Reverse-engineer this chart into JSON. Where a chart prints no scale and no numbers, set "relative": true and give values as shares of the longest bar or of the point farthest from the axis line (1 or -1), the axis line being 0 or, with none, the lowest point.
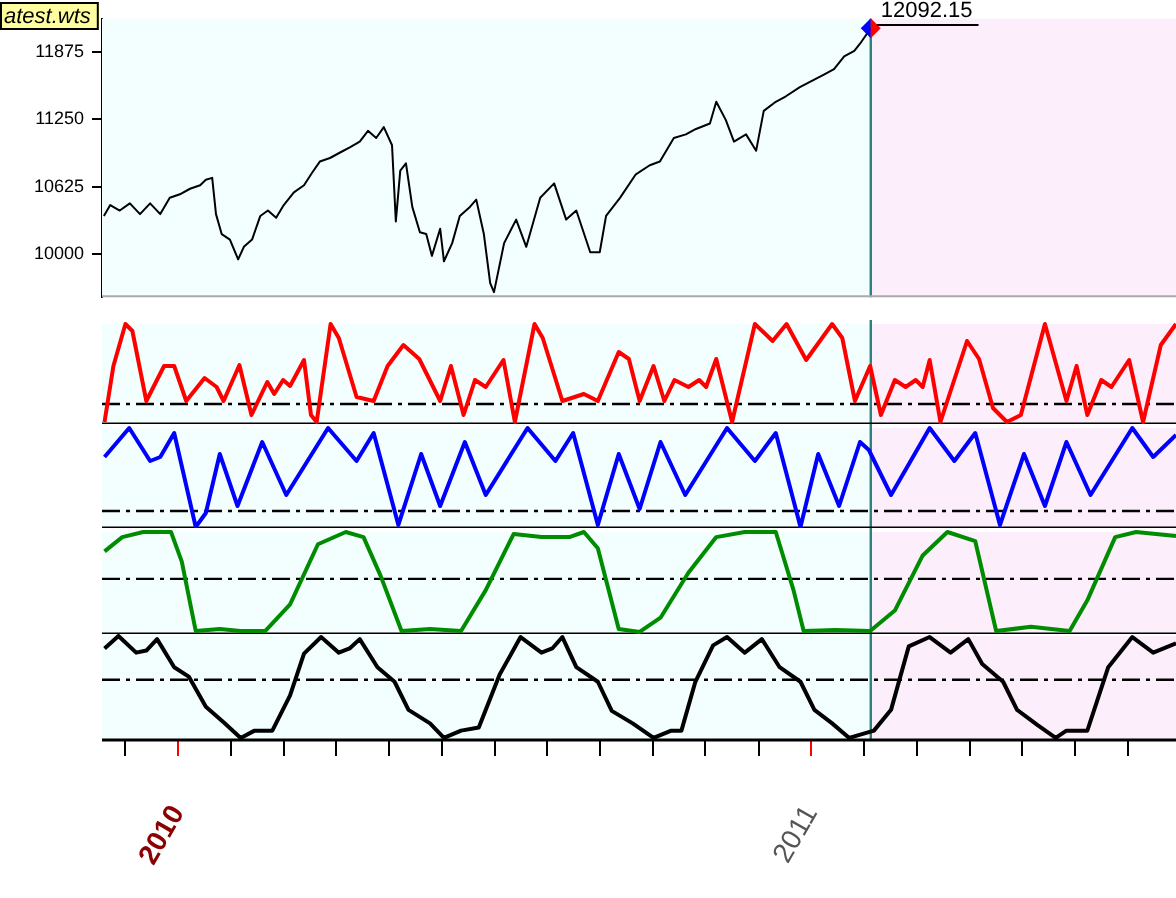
{
  "chart_data": [
    {
      "type": "line",
      "color": "#000000",
      "annotations": [
        "atest.wts",
        {
          "text": "12092.15",
          "x": 2011.094,
          "y": 12092.15
        }
      ],
      "xlim": [
        2009.88,
        2011.576
      ],
      "ylim": [
        9600,
        12180
      ],
      "yticks": [
        10000,
        10625,
        11250,
        11875
      ],
      "tick_labels": "y",
      "ref_lines": [
        {
          "axis": "x",
          "value": 2011.094,
          "color": "#2a7f7f"
        }
      ],
      "bands": [
        {
          "axis": "x",
          "from": 2011.094,
          "to": 2011.576,
          "color": "#fdeefb"
        }
      ],
      "x": [
        2009.883,
        2009.893,
        2009.908,
        2009.924,
        2009.94,
        2009.956,
        2009.972,
        2009.987,
        2010.003,
        2010.019,
        2010.035,
        2010.044,
        2010.054,
        2010.06,
        2010.069,
        2010.082,
        2010.095,
        2010.104,
        2010.117,
        2010.13,
        2010.142,
        2010.155,
        2010.167,
        2010.183,
        2010.199,
        2010.212,
        2010.224,
        2010.24,
        2010.256,
        2010.272,
        2010.287,
        2010.3,
        2010.313,
        2010.325,
        2010.338,
        2010.344,
        2010.351,
        2010.36,
        2010.37,
        2010.382,
        2010.392,
        2010.401,
        2010.414,
        2010.42,
        2010.433,
        2010.445,
        2010.461,
        2010.471,
        2010.483,
        2010.493,
        2010.499,
        2010.515,
        2010.534,
        2010.55,
        2010.572,
        2010.594,
        2010.613,
        2010.629,
        2010.651,
        2010.666,
        2010.676,
        2010.698,
        2010.723,
        2010.745,
        2010.761,
        2010.783,
        2010.802,
        2010.818,
        2010.84,
        2010.85,
        2010.865,
        2010.878,
        2010.897,
        2010.913,
        2010.925,
        2010.944,
        2010.96,
        2010.982,
        2011.004,
        2011.02,
        2011.036,
        2011.052,
        2011.068,
        2011.077,
        2011.094
      ],
      "values": [
        10353,
        10454,
        10403,
        10470,
        10370,
        10470,
        10370,
        10521,
        10554,
        10605,
        10638,
        10689,
        10706,
        10370,
        10185,
        10134,
        9950,
        10067,
        10134,
        10353,
        10403,
        10336,
        10454,
        10571,
        10638,
        10756,
        10857,
        10890,
        10941,
        10991,
        11042,
        11142,
        11075,
        11176,
        11008,
        10302,
        10773,
        10840,
        10437,
        10202,
        10185,
        9983,
        10235,
        9933,
        10101,
        10353,
        10437,
        10504,
        10185,
        9731,
        9647,
        10101,
        10319,
        10067,
        10521,
        10655,
        10319,
        10403,
        10017,
        10017,
        10353,
        10521,
        10739,
        10823,
        10857,
        11075,
        11109,
        11159,
        11210,
        11411,
        11243,
        11042,
        11109,
        10958,
        11327,
        11411,
        11462,
        11546,
        11613,
        11663,
        11714,
        11831,
        11882,
        11949,
        12092.15
      ]
    },
    {
      "type": "line",
      "relative": true,
      "color": "#ff0000",
      "xlim": [
        2009.88,
        2011.576
      ],
      "tick_labels": false,
      "ref_lines": [
        {
          "axis": "x",
          "value": 2011.094,
          "color": "#2a7f7f"
        },
        {
          "axis": "y",
          "value": 0.2,
          "color": "#000000",
          "line_style": "dashed"
        }
      ],
      "bands": [
        {
          "axis": "x",
          "from": 2011.094,
          "to": 2011.576,
          "color": "#fdeefb"
        }
      ],
      "x": [
        2009.884,
        2009.898,
        2009.917,
        2009.928,
        2009.95,
        2009.978,
        2009.994,
        2010.013,
        2010.042,
        2010.061,
        2010.072,
        2010.097,
        2010.116,
        2010.141,
        2010.152,
        2010.166,
        2010.177,
        2010.199,
        2010.21,
        2010.219,
        2010.241,
        2010.254,
        2010.282,
        2010.309,
        2010.331,
        2010.356,
        2010.381,
        2010.414,
        2010.431,
        2010.451,
        2010.469,
        2010.486,
        2010.514,
        2010.532,
        2010.563,
        2010.576,
        2010.607,
        2010.641,
        2010.663,
        2010.696,
        2010.712,
        2010.729,
        2010.751,
        2010.768,
        2010.784,
        2010.806,
        2010.823,
        2010.834,
        2010.85,
        2010.875,
        2010.911,
        2010.939,
        2010.961,
        2010.992,
        2011.033,
        2011.049,
        2011.069,
        2011.093,
        2011.11,
        2011.132,
        2011.149,
        2011.165,
        2011.176,
        2011.187,
        2011.204,
        2011.246,
        2011.265,
        2011.287,
        2011.309,
        2011.331,
        2011.369,
        2011.403,
        2011.419,
        2011.436,
        2011.458,
        2011.474,
        2011.502,
        2011.524,
        2011.552,
        2011.576
      ],
      "values": [
        0.02,
        0.58,
        1,
        0.93,
        0.23,
        0.58,
        0.58,
        0.23,
        0.46,
        0.37,
        0.23,
        0.59,
        0.09,
        0.42,
        0.3,
        0.44,
        0.38,
        0.64,
        0.09,
        0.02,
        1,
        0.86,
        0.27,
        0.23,
        0.58,
        0.79,
        0.65,
        0.23,
        0.58,
        0.09,
        0.44,
        0.37,
        0.64,
        0.02,
        1,
        0.86,
        0.23,
        0.3,
        0.23,
        0.72,
        0.65,
        0.23,
        0.58,
        0.23,
        0.44,
        0.37,
        0.44,
        0.37,
        0.65,
        0.02,
        1,
        0.83,
        1,
        0.64,
        1,
        0.86,
        0.23,
        0.58,
        0.09,
        0.44,
        0.37,
        0.44,
        0.37,
        0.64,
        0.02,
        0.83,
        0.65,
        0.16,
        0.02,
        0.09,
        1,
        0.23,
        0.58,
        0.09,
        0.44,
        0.37,
        0.64,
        0.02,
        0.79,
        1
      ]
    },
    {
      "type": "line",
      "relative": true,
      "color": "#0000ff",
      "xlim": [
        2009.88,
        2011.576
      ],
      "tick_labels": false,
      "ref_lines": [
        {
          "axis": "x",
          "value": 2011.094,
          "color": "#2a7f7f"
        },
        {
          "axis": "y",
          "value": 0.17,
          "color": "#000000",
          "line_style": "dashed"
        }
      ],
      "bands": [
        {
          "axis": "x",
          "from": 2011.094,
          "to": 2011.576,
          "color": "#fdeefb"
        }
      ],
      "x": [
        2009.884,
        2009.923,
        2009.956,
        2009.972,
        2009.994,
        2010.028,
        2010.044,
        2010.066,
        2010.094,
        2010.133,
        2010.171,
        2010.237,
        2010.282,
        2010.309,
        2010.348,
        2010.384,
        2010.414,
        2010.453,
        2010.486,
        2010.552,
        2010.596,
        2010.624,
        2010.663,
        2010.696,
        2010.729,
        2010.762,
        2010.801,
        2010.867,
        2010.911,
        2010.944,
        2010.983,
        2011.011,
        2011.044,
        2011.077,
        2011.091,
        2011.126,
        2011.187,
        2011.226,
        2011.259,
        2011.298,
        2011.336,
        2011.369,
        2011.403,
        2011.441,
        2011.507,
        2011.54,
        2011.576
      ],
      "values": [
        0.71,
        1,
        0.67,
        0.71,
        0.95,
        0.01,
        0.15,
        0.74,
        0.22,
        0.86,
        0.33,
        1,
        0.67,
        0.95,
        0.03,
        0.74,
        0.22,
        0.86,
        0.33,
        1,
        0.67,
        0.95,
        0.03,
        0.74,
        0.19,
        0.86,
        0.33,
        1,
        0.67,
        0.95,
        0.01,
        0.74,
        0.22,
        0.86,
        0.78,
        0.33,
        1,
        0.67,
        0.95,
        0.03,
        0.74,
        0.22,
        0.86,
        0.33,
        1,
        0.71,
        0.93
      ]
    },
    {
      "type": "line",
      "relative": true,
      "color": "#008c00",
      "xlim": [
        2009.88,
        2011.576
      ],
      "tick_labels": false,
      "ref_lines": [
        {
          "axis": "x",
          "value": 2011.094,
          "color": "#2a7f7f"
        },
        {
          "axis": "y",
          "value": 0.54,
          "color": "#000000",
          "line_style": "dashed"
        }
      ],
      "bands": [
        {
          "axis": "x",
          "from": 2011.094,
          "to": 2011.576,
          "color": "#fdeefb"
        }
      ],
      "x": [
        2009.884,
        2009.912,
        2009.945,
        2009.989,
        2010.006,
        2010.028,
        2010.066,
        2010.099,
        2010.138,
        2010.177,
        2010.221,
        2010.265,
        2010.293,
        2010.32,
        2010.353,
        2010.398,
        2010.447,
        2010.486,
        2010.53,
        2010.574,
        2010.618,
        2010.641,
        2010.663,
        2010.696,
        2010.729,
        2010.762,
        2010.806,
        2010.85,
        2010.895,
        2010.944,
        2010.972,
        2010.988,
        2011.038,
        2011.093,
        2011.132,
        2011.176,
        2011.215,
        2011.259,
        2011.292,
        2011.347,
        2011.408,
        2011.436,
        2011.48,
        2011.513,
        2011.576
      ],
      "values": [
        0.81,
        0.95,
        1,
        1,
        0.71,
        0.03,
        0.05,
        0.03,
        0.03,
        0.29,
        0.88,
        1,
        0.95,
        0.57,
        0.03,
        0.05,
        0.03,
        0.43,
        0.98,
        0.95,
        0.95,
        1,
        0.84,
        0.05,
        0.02,
        0.16,
        0.6,
        0.95,
        1,
        1,
        0.43,
        0.03,
        0.04,
        0.03,
        0.23,
        0.77,
        1,
        0.91,
        0.03,
        0.07,
        0.03,
        0.33,
        0.95,
        1,
        0.96
      ]
    },
    {
      "type": "line",
      "relative": true,
      "color": "#000000",
      "xlim": [
        2009.88,
        2011.576
      ],
      "tick_labels": "x",
      "xticks": [
        {
          "value": 2009.917,
          "label": null
        },
        2010,
        {
          "value": 2010.083,
          "label": null
        },
        {
          "value": 2010.167,
          "label": null
        },
        {
          "value": 2010.25,
          "label": null
        },
        {
          "value": 2010.333,
          "label": null
        },
        {
          "value": 2010.417,
          "label": null
        },
        {
          "value": 2010.5,
          "label": null
        },
        {
          "value": 2010.583,
          "label": null
        },
        {
          "value": 2010.667,
          "label": null
        },
        {
          "value": 2010.75,
          "label": null
        },
        {
          "value": 2010.833,
          "label": null
        },
        {
          "value": 2010.917,
          "label": null
        },
        2011,
        {
          "value": 2011.083,
          "label": null
        },
        {
          "value": 2011.167,
          "label": null
        },
        {
          "value": 2011.25,
          "label": null
        },
        {
          "value": 2011.333,
          "label": null
        },
        {
          "value": 2011.417,
          "label": null
        },
        {
          "value": 2011.5,
          "label": null
        }
      ],
      "ref_lines": [
        {
          "axis": "x",
          "value": 2011.094,
          "color": "#2a7f7f"
        },
        {
          "axis": "y",
          "value": 0.58,
          "color": "#000000",
          "line_style": "dashed"
        }
      ],
      "bands": [
        {
          "axis": "x",
          "from": 2011.094,
          "to": 2011.576,
          "color": "#fdeefb"
        }
      ],
      "x": [
        2009.884,
        2009.906,
        2009.934,
        2009.95,
        2009.967,
        2009.994,
        2010.017,
        2010.044,
        2010.072,
        2010.099,
        2010.121,
        2010.149,
        2010.177,
        2010.199,
        2010.226,
        2010.254,
        2010.271,
        2010.287,
        2010.315,
        2010.342,
        2010.364,
        2010.398,
        2010.42,
        2010.447,
        2010.475,
        2010.508,
        2010.541,
        2010.574,
        2010.591,
        2010.607,
        2010.629,
        2010.663,
        2010.685,
        2010.718,
        2010.751,
        2010.779,
        2010.795,
        2010.817,
        2010.845,
        2010.867,
        2010.895,
        2010.922,
        2010.95,
        2010.983,
        2011.005,
        2011.033,
        2011.06,
        2011.099,
        2011.126,
        2011.154,
        2011.187,
        2011.22,
        2011.248,
        2011.27,
        2011.303,
        2011.325,
        2011.358,
        2011.386,
        2011.403,
        2011.436,
        2011.469,
        2011.507,
        2011.54,
        2011.576
      ],
      "values": [
        0.88,
        1,
        0.84,
        0.86,
        0.97,
        0.7,
        0.61,
        0.32,
        0.17,
        0.02,
        0.09,
        0.09,
        0.43,
        0.83,
        0.99,
        0.84,
        0.88,
        0.97,
        0.7,
        0.56,
        0.29,
        0.16,
        0.02,
        0.09,
        0.12,
        0.63,
        0.99,
        0.84,
        0.88,
        0.99,
        0.7,
        0.56,
        0.28,
        0.16,
        0.02,
        0.09,
        0.09,
        0.56,
        0.91,
        0.99,
        0.84,
        0.97,
        0.7,
        0.56,
        0.29,
        0.16,
        0.02,
        0.09,
        0.29,
        0.9,
        0.99,
        0.84,
        0.97,
        0.73,
        0.56,
        0.29,
        0.14,
        0.02,
        0.09,
        0.09,
        0.7,
        0.99,
        0.84,
        0.93
      ]
    }
  ]
}
